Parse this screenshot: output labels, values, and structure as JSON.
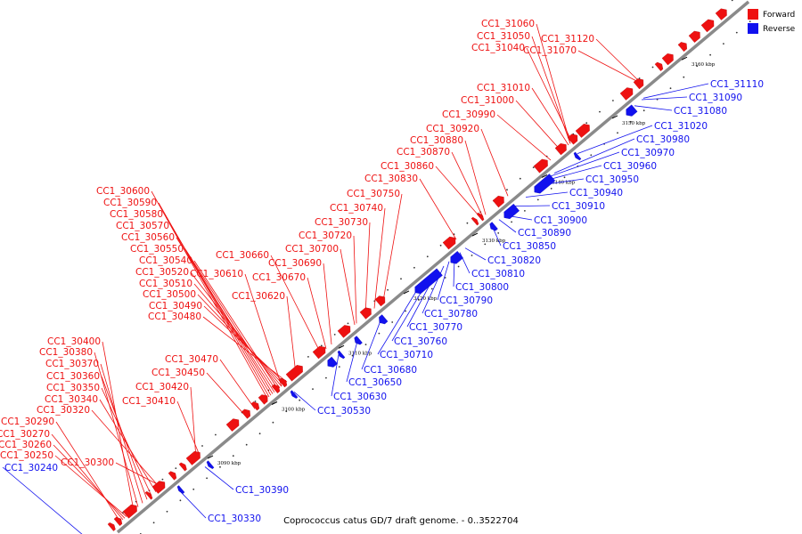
{
  "caption": "Coprococcus catus GD/7 draft genome. - 0..3522704",
  "legend": [
    {
      "label": "Forward",
      "color": "#ee1111"
    },
    {
      "label": "Reverse",
      "color": "#1111ee"
    }
  ],
  "colors": {
    "forward": "#ee1111",
    "reverse": "#1111ee",
    "axis": "#7f7f7f"
  },
  "ticks": [
    "3090 kbp",
    "3100 kbp",
    "3110 kbp",
    "3120 kbp",
    "3130 kbp",
    "3140 kbp",
    "3150 kbp",
    "3160 kbp"
  ],
  "forward_labels": [
    "CC1_31060",
    "CC1_31050",
    "CC1_31040",
    "CC1_31120",
    "CC1_31070",
    "CC1_31010",
    "CC1_31000",
    "CC1_30990",
    "CC1_30920",
    "CC1_30880",
    "CC1_30870",
    "CC1_30860",
    "CC1_30830",
    "CC1_30750",
    "CC1_30740",
    "CC1_30730",
    "CC1_30720",
    "CC1_30700",
    "CC1_30690",
    "CC1_30660",
    "CC1_30610",
    "CC1_30670",
    "CC1_30620",
    "CC1_30600",
    "CC1_30590",
    "CC1_30580",
    "CC1_30570",
    "CC1_30560",
    "CC1_30550",
    "CC1_30540",
    "CC1_30520",
    "CC1_30510",
    "CC1_30500",
    "CC1_30490",
    "CC1_30480",
    "CC1_30470",
    "CC1_30450",
    "CC1_30420",
    "CC1_30410",
    "CC1_30400",
    "CC1_30380",
    "CC1_30370",
    "CC1_30360",
    "CC1_30350",
    "CC1_30340",
    "CC1_30320",
    "CC1_30290",
    "CC1_30270",
    "CC1_30260",
    "CC1_30250",
    "CC1_30300"
  ],
  "reverse_labels": [
    "CC1_31110",
    "CC1_31090",
    "CC1_31080",
    "CC1_31020",
    "CC1_30980",
    "CC1_30970",
    "CC1_30960",
    "CC1_30950",
    "CC1_30940",
    "CC1_30910",
    "CC1_30900",
    "CC1_30890",
    "CC1_30850",
    "CC1_30820",
    "CC1_30810",
    "CC1_30800",
    "CC1_30790",
    "CC1_30780",
    "CC1_30770",
    "CC1_30760",
    "CC1_30710",
    "CC1_30680",
    "CC1_30650",
    "CC1_30630",
    "CC1_30530",
    "CC1_30390",
    "CC1_30330",
    "CC1_30240"
  ]
}
